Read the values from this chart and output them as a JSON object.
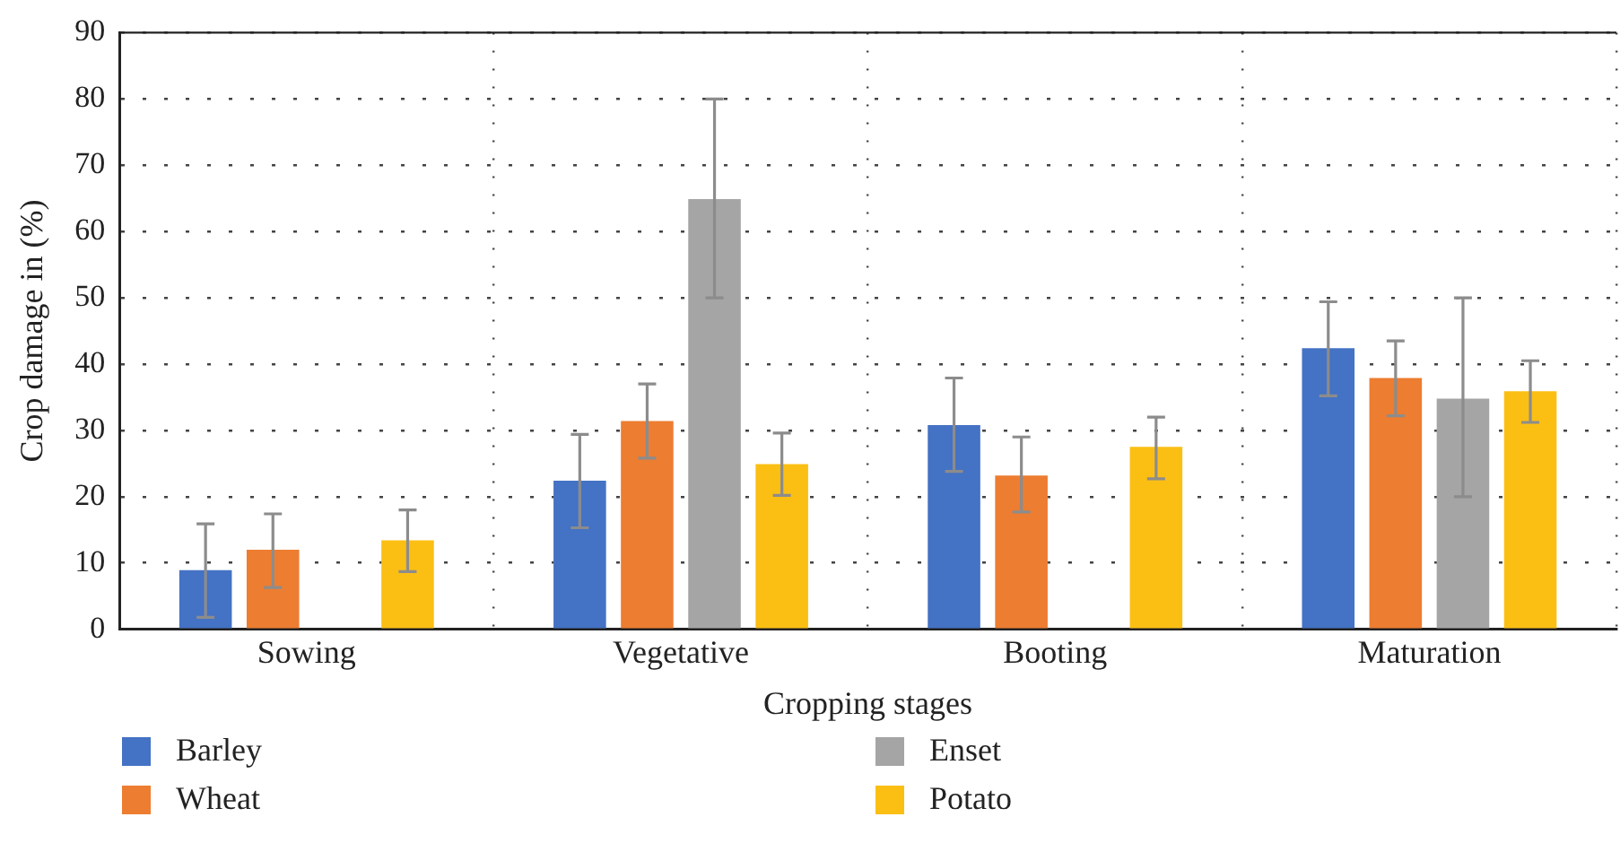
{
  "chart_data": {
    "type": "bar",
    "xlabel": "Cropping stages",
    "ylabel": "Crop damage in (%)",
    "categories": [
      "Sowing",
      "Vegetative",
      "Booting",
      "Maturation"
    ],
    "series": [
      {
        "name": "Barley",
        "color": "#4472c4",
        "values": [
          8.9,
          22.4,
          30.8,
          42.4
        ],
        "errors": [
          [
            1.8,
            15.9
          ],
          [
            15.3,
            29.4
          ],
          [
            23.8,
            37.9
          ],
          [
            35.2,
            49.4
          ]
        ]
      },
      {
        "name": "Wheat",
        "color": "#ed7d31",
        "values": [
          12,
          31.4,
          23.2,
          37.9
        ],
        "errors": [
          [
            6.3,
            17.4
          ],
          [
            25.8,
            37
          ],
          [
            17.7,
            29
          ],
          [
            32.2,
            43.5
          ]
        ]
      },
      {
        "name": "Enset",
        "color": "#a5a5a5",
        "values": [
          null,
          64.9,
          null,
          34.8
        ],
        "errors": [
          null,
          [
            50,
            80
          ],
          null,
          [
            20,
            50
          ]
        ]
      },
      {
        "name": "Potato",
        "color": "#fbbf14",
        "values": [
          13.4,
          24.9,
          27.5,
          35.9
        ],
        "errors": [
          [
            8.7,
            18
          ],
          [
            20.2,
            29.6
          ],
          [
            22.7,
            32
          ],
          [
            31.2,
            40.5
          ]
        ]
      }
    ],
    "ylim": [
      0,
      90
    ],
    "yticks": [
      0,
      10,
      20,
      30,
      40,
      50,
      60,
      70,
      80,
      90
    ],
    "grid": true,
    "legend": "bottom"
  }
}
